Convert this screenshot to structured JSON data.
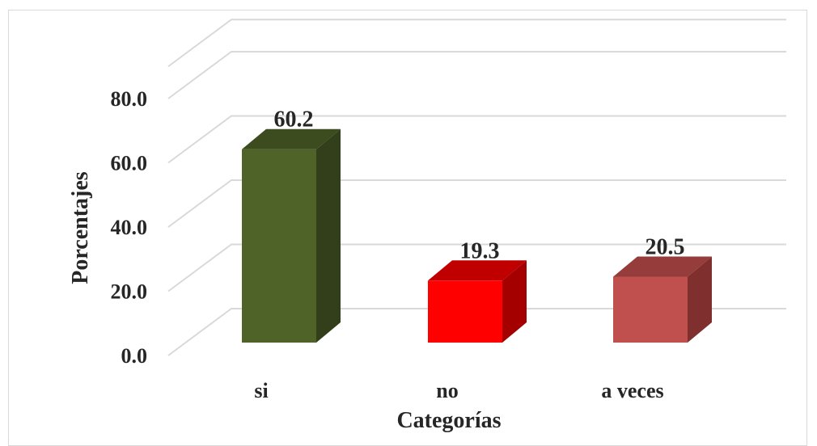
{
  "chart_data": {
    "type": "bar",
    "style": "3d-column",
    "categories": [
      "si",
      "no",
      "a veces"
    ],
    "values": [
      60.2,
      19.3,
      20.5
    ],
    "data_labels": [
      "60.2",
      "19.3",
      "20.5"
    ],
    "bar_colors": [
      {
        "front": "#4f6228",
        "side": "#323f1a",
        "top": "#3c4c1f"
      },
      {
        "front": "#ff0000",
        "side": "#a50000",
        "top": "#c00000"
      },
      {
        "front": "#c0504d",
        "side": "#7f2f2e",
        "top": "#963d3b"
      }
    ],
    "title": "",
    "xlabel": "Categorías",
    "ylabel": "Porcentajes",
    "ylim": [
      0,
      90
    ],
    "yticks": [
      0,
      20,
      40,
      60,
      80
    ],
    "ytick_labels": [
      "0.0",
      "20.0",
      "40.0",
      "60.0",
      "80.0"
    ],
    "grid": true,
    "legend": "none"
  }
}
